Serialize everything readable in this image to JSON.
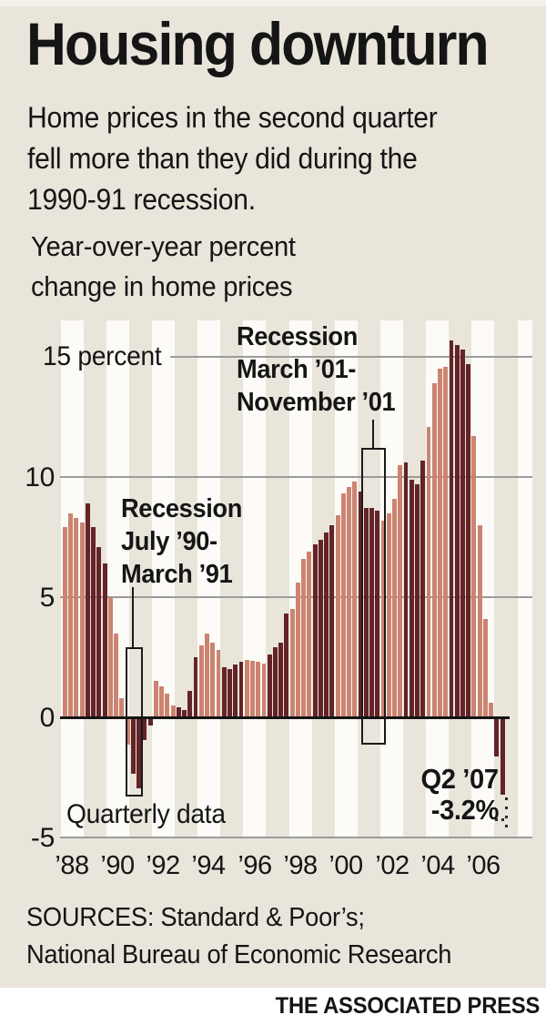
{
  "header": {
    "title": "Housing downturn",
    "subtitle_lines": [
      "Home prices in the second quarter",
      "fell more than they did during the",
      "1990-91 recession."
    ],
    "measure_lines": [
      "Year-over-year percent",
      "change in home prices"
    ]
  },
  "axis": {
    "y_labels": [
      "15 percent",
      "10",
      "5",
      "0",
      "-5"
    ],
    "x_labels": [
      "’88",
      "’90",
      "’92",
      "’94",
      "’96",
      "’98",
      "’00",
      "’02",
      "’04",
      "’06"
    ]
  },
  "annotations": {
    "recession_1990_lines": [
      "Recession",
      "July ’90-",
      "March ’91"
    ],
    "recession_2001_lines": [
      "Recession",
      "March ’01-",
      "November ’01"
    ],
    "quarterly_note": "Quarterly data",
    "latest_label": "Q2 ’07",
    "latest_value": "-3.2%"
  },
  "footer": {
    "sources_lines": [
      "SOURCES: Standard & Poor’s;",
      "National Bureau of Economic Research"
    ],
    "credit": "THE ASSOCIATED PRESS"
  },
  "colors": {
    "background": "#e9e5db",
    "stripe_white": "#fcfbf7",
    "bar_light": "#cc8471",
    "bar_dark": "#632327",
    "gridline": "#9b9b9b",
    "zero_line": "#141414",
    "text": "#151515",
    "footer_band": "#ffffff"
  },
  "chart_data": {
    "type": "bar",
    "title": "Year-over-year percent change in home prices",
    "unit": "percent",
    "frequency": "quarterly",
    "x_start": "1988 Q1",
    "x_end": "2007 Q2",
    "ylim": [
      -5,
      16
    ],
    "y_gridlines": [
      15,
      10,
      5,
      0,
      -5
    ],
    "grid": true,
    "legend": "none",
    "bar_color_rule": "even years salmon, odd years dark maroon; background striped by year",
    "values_by_year": {
      "1988": [
        7.9,
        8.5,
        8.3,
        8.1
      ],
      "1989": [
        8.9,
        7.9,
        7.1,
        6.4
      ],
      "1990": [
        5.0,
        3.5,
        0.8,
        -1.1
      ],
      "1991": [
        -2.3,
        -2.9,
        -0.9,
        -0.3
      ],
      "1992": [
        1.5,
        1.3,
        1.0,
        0.5
      ],
      "1993": [
        0.4,
        0.3,
        1.1,
        2.5
      ],
      "1994": [
        3.0,
        3.5,
        3.1,
        2.8
      ],
      "1995": [
        2.1,
        2.0,
        2.2,
        2.3
      ],
      "1996": [
        2.4,
        2.35,
        2.3,
        2.25
      ],
      "1997": [
        2.6,
        2.9,
        3.1,
        4.3
      ],
      "1998": [
        4.5,
        5.6,
        6.6,
        6.9
      ],
      "1999": [
        7.2,
        7.4,
        7.7,
        8.0
      ],
      "2000": [
        8.4,
        9.3,
        9.6,
        9.8
      ],
      "2001": [
        9.4,
        8.7,
        8.7,
        8.6
      ],
      "2002": [
        8.2,
        8.5,
        9.1,
        10.5
      ],
      "2003": [
        10.6,
        9.9,
        9.7,
        10.7
      ],
      "2004": [
        12.1,
        13.9,
        14.5,
        14.6
      ],
      "2005": [
        15.7,
        15.5,
        15.3,
        14.7
      ],
      "2006": [
        11.7,
        8.0,
        4.1,
        0.6
      ],
      "2007": [
        -1.6,
        -3.2
      ]
    },
    "recessions": [
      {
        "label": "Recession July ’90-March ’91",
        "quarters": [
          "1990Q4",
          "1991Q2"
        ]
      },
      {
        "label": "Recession March ’01-November ’01",
        "quarters": [
          "2001Q2",
          "2001Q4"
        ]
      }
    ],
    "callout": {
      "quarter": "2007Q2",
      "value": -3.2
    }
  }
}
